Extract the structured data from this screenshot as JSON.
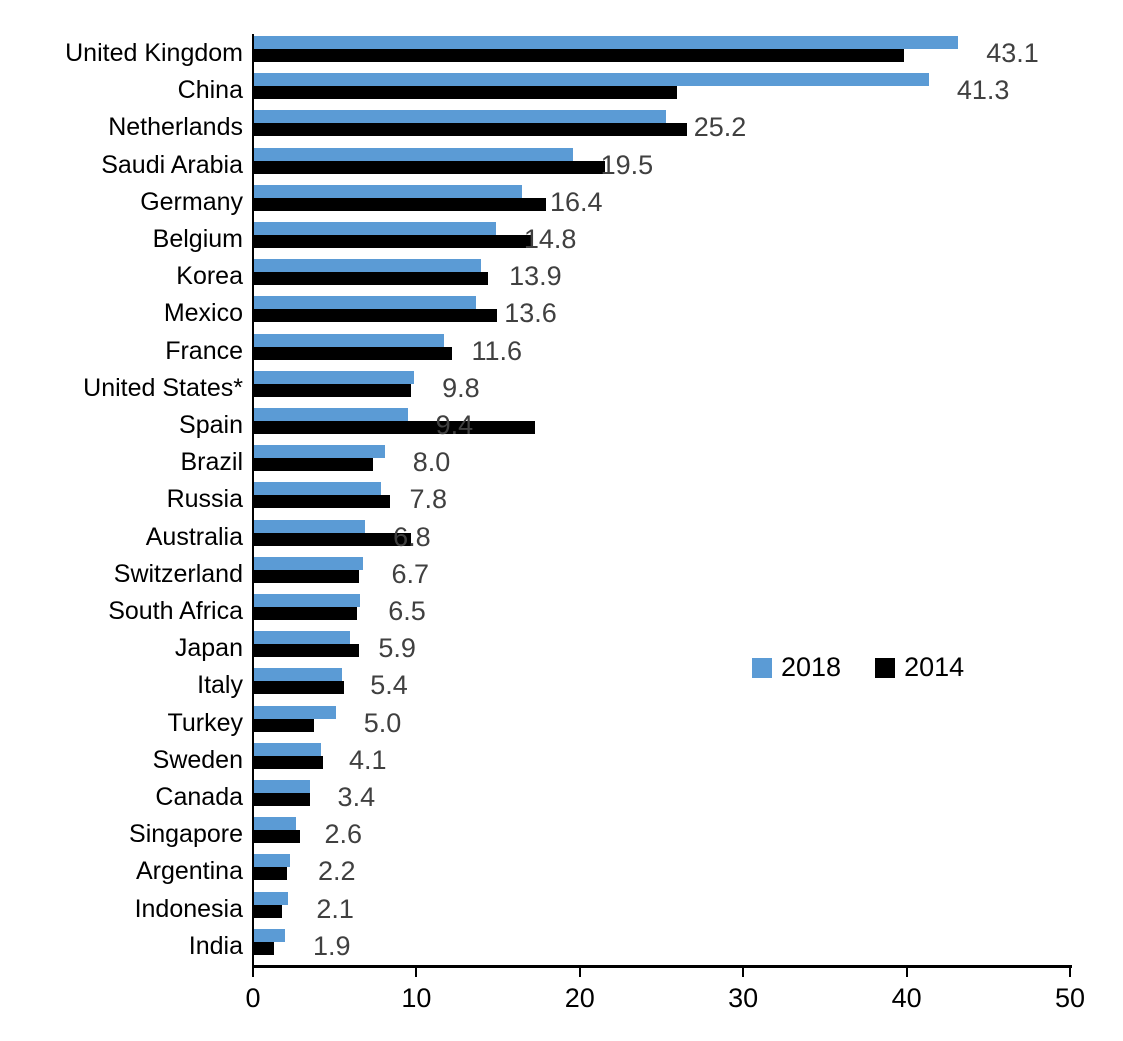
{
  "chart_data": {
    "type": "bar",
    "orientation": "horizontal",
    "title": "",
    "xlabel": "",
    "ylabel": "",
    "xlim": [
      0,
      50
    ],
    "x_ticks": [
      "0",
      "10",
      "20",
      "30",
      "40",
      "50"
    ],
    "grid": false,
    "categories": [
      "United Kingdom",
      "China",
      "Netherlands",
      "Saudi Arabia",
      "Germany",
      "Belgium",
      "Korea",
      "Mexico",
      "France",
      "United States*",
      "Spain",
      "Brazil",
      "Russia",
      "Australia",
      "Switzerland",
      "South Africa",
      "Japan",
      "Italy",
      "Turkey",
      "Sweden",
      "Canada",
      "Singapore",
      "Argentina",
      "Indonesia",
      "India"
    ],
    "series": [
      {
        "name": "2018",
        "color": "#5B9BD5",
        "values": [
          43.1,
          41.3,
          25.2,
          19.5,
          16.4,
          14.8,
          13.9,
          13.6,
          11.6,
          9.8,
          9.4,
          8.0,
          7.8,
          6.8,
          6.7,
          6.5,
          5.9,
          5.4,
          5.0,
          4.1,
          3.4,
          2.6,
          2.2,
          2.1,
          1.9
        ]
      },
      {
        "name": "2014",
        "color": "#000000",
        "values": [
          39.8,
          25.9,
          26.5,
          21.5,
          17.9,
          17.0,
          14.3,
          14.9,
          12.1,
          9.6,
          17.2,
          7.3,
          8.3,
          9.6,
          6.4,
          6.3,
          6.4,
          5.5,
          3.7,
          4.2,
          3.4,
          2.8,
          2.0,
          1.7,
          1.2
        ]
      }
    ],
    "value_labels": {
      "series": "2018",
      "color": "#404040",
      "texts": [
        "43.1",
        "41.3",
        "25.2",
        "19.5",
        "16.4",
        "14.8",
        "13.9",
        "13.6",
        "11.6",
        "9.8",
        "9.4",
        "8.0",
        "7.8",
        "6.8",
        "6.7",
        "6.5",
        "5.9",
        "5.4",
        "5.0",
        "4.1",
        "3.4",
        "2.6",
        "2.2",
        "2.1",
        "1.9"
      ]
    },
    "legend": {
      "position": "middle-right",
      "entries": [
        "2018",
        "2014"
      ]
    }
  }
}
